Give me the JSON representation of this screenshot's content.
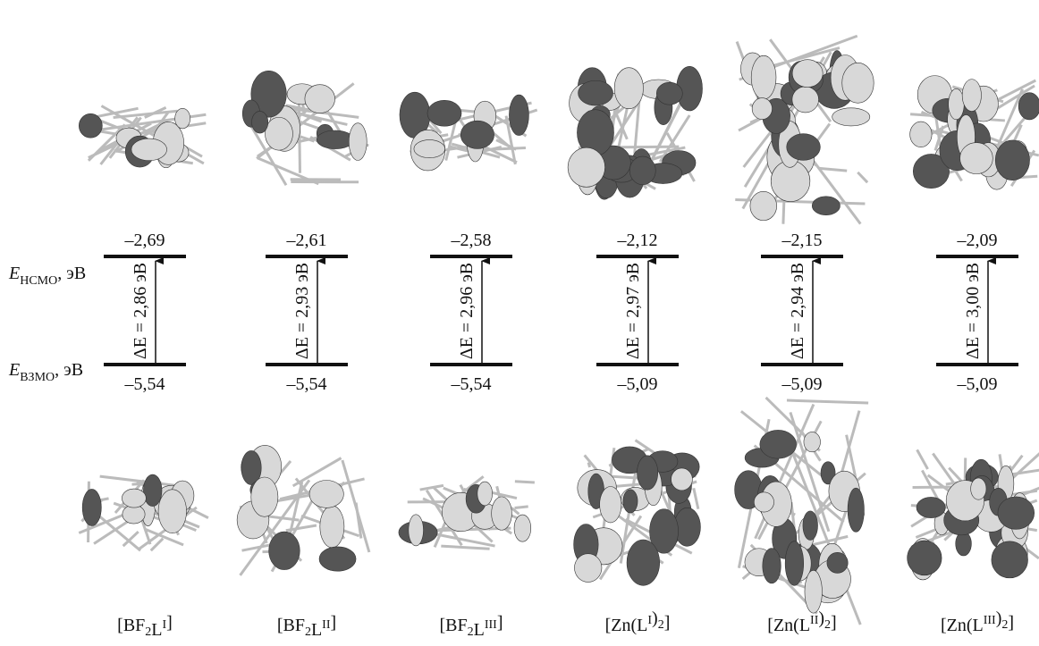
{
  "left_labels": {
    "lumo": {
      "symbol": "E",
      "subscript": "НСМО",
      "unit": ", эВ"
    },
    "homo": {
      "symbol": "E",
      "subscript": "ВЗМО",
      "unit": ", эВ"
    }
  },
  "columns": [
    {
      "name": [
        {
          "text": "[BF"
        },
        {
          "sub": "2"
        },
        {
          "text": "L"
        },
        {
          "sup": "I"
        },
        {
          "text": "]"
        }
      ],
      "lumo": "–2,69",
      "homo": "–5,54",
      "gap": "ΔE = 2,86 эВ"
    },
    {
      "name": [
        {
          "text": "[BF"
        },
        {
          "sub": "2"
        },
        {
          "text": "L"
        },
        {
          "sup": "II"
        },
        {
          "text": "]"
        }
      ],
      "lumo": "–2,61",
      "homo": "–5,54",
      "gap": "ΔE = 2,93 эВ"
    },
    {
      "name": [
        {
          "text": "[BF"
        },
        {
          "sub": "2"
        },
        {
          "text": "L"
        },
        {
          "sup": "III"
        },
        {
          "text": "]"
        }
      ],
      "lumo": "–2,58",
      "homo": "–5,54",
      "gap": "ΔE = 2,96 эВ"
    },
    {
      "name": [
        {
          "text": "[Zn(L"
        },
        {
          "sup": "I"
        },
        {
          "text": ")"
        },
        {
          "sub": "2"
        },
        {
          "text": "]"
        }
      ],
      "lumo": "–2,12",
      "homo": "–5,09",
      "gap": "ΔE = 2,97 эВ"
    },
    {
      "name": [
        {
          "text": "[Zn(L"
        },
        {
          "sup": "II"
        },
        {
          "text": ")"
        },
        {
          "sub": "2"
        },
        {
          "text": "]"
        }
      ],
      "lumo": "–2,15",
      "homo": "–5,09",
      "gap": "ΔE = 2,94 эВ"
    },
    {
      "name": [
        {
          "text": "[Zn(L"
        },
        {
          "sup": "III"
        },
        {
          "text": ")"
        },
        {
          "sub": "2"
        },
        {
          "text": "]"
        }
      ],
      "lumo": "–2,09",
      "homo": "–5,09",
      "gap": "ΔE = 3,00 эВ"
    }
  ]
}
